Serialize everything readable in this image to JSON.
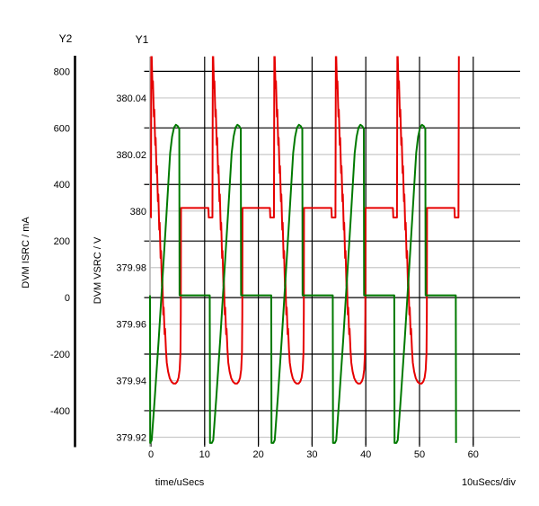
{
  "window": {
    "background": "#ffffff"
  },
  "axes": {
    "y2": {
      "header": "Y2",
      "title": "DVM ISRC / mA",
      "ticks": [
        "800",
        "600",
        "400",
        "200",
        "0",
        "-200",
        "-400"
      ],
      "tick_values": [
        800,
        600,
        400,
        200,
        0,
        -200,
        -400
      ]
    },
    "y1": {
      "header": "Y1",
      "title": "DVM VSRC / V",
      "ticks": [
        "380.04",
        "380.02",
        "380",
        "379.98",
        "379.96",
        "379.94",
        "379.92"
      ],
      "tick_values": [
        380.04,
        380.02,
        380,
        379.98,
        379.96,
        379.94,
        379.92
      ]
    },
    "x": {
      "title": "time/uSecs",
      "scale_note": "10uSecs/div",
      "ticks": [
        "0",
        "10",
        "20",
        "30",
        "40",
        "50",
        "60"
      ],
      "tick_values": [
        0,
        10,
        20,
        30,
        40,
        50,
        60
      ]
    }
  },
  "colors": {
    "red_trace": "#e60000",
    "green_trace": "#007a00",
    "grid_black": "#000000",
    "grid_gray": "#c9c9c9",
    "y1_axis_gray": "#b3b3b3",
    "text": "#000000",
    "background": "#ffffff"
  },
  "chart_data": {
    "type": "line",
    "title": "",
    "x_unit": "uSecs",
    "x_range": [
      0,
      69
    ],
    "x_grid_every": 10,
    "y2_range_mA": [
      -520,
      852
    ],
    "y1_range_V": [
      379.917,
      380.054
    ],
    "period_us": 11.45,
    "num_switching_cycles": 6,
    "series": [
      {
        "name": "DVM ISRC",
        "axis": "Y2",
        "unit": "mA",
        "color": "#e60000",
        "behavior": "Each cycle: narrow spike clipped at plot top (~850 mA), jagged steep fall to a rounded -300 mA dip, near-vertical rise to ~317 mA plateau, small sag to ~283 mA just before the next spike. Trace ends on the 6th spike.",
        "spike_peak_mA": 900,
        "spike_times_us": [
          0,
          11.45,
          22.9,
          34.35,
          45.8,
          57.25
        ],
        "descent_dt_mA": [
          [
            0.3,
            740
          ],
          [
            0.38,
            765
          ],
          [
            0.55,
            640
          ],
          [
            0.63,
            665
          ],
          [
            0.8,
            540
          ],
          [
            0.88,
            565
          ],
          [
            1.05,
            440
          ],
          [
            1.13,
            465
          ],
          [
            1.3,
            340
          ],
          [
            1.38,
            365
          ],
          [
            1.55,
            240
          ],
          [
            1.63,
            265
          ],
          [
            1.8,
            140
          ],
          [
            1.88,
            165
          ],
          [
            2.05,
            40
          ],
          [
            2.13,
            65
          ],
          [
            2.3,
            -60
          ],
          [
            2.38,
            -35
          ],
          [
            2.55,
            -130
          ],
          [
            2.63,
            -110
          ],
          [
            2.8,
            -185
          ],
          [
            2.95,
            -230
          ],
          [
            3.2,
            -262
          ],
          [
            3.5,
            -285
          ],
          [
            3.85,
            -298
          ],
          [
            4.2,
            -304
          ],
          [
            4.6,
            -304
          ],
          [
            4.9,
            -297
          ],
          [
            5.15,
            -283
          ],
          [
            5.35,
            -255
          ],
          [
            5.5,
            -195
          ],
          [
            5.56,
            -60
          ],
          [
            5.6,
            317
          ]
        ],
        "flat_mA": 317,
        "sag_mA": 283,
        "sag_lead_us": 0.75,
        "sag_edge_us": 0.07,
        "start_level_mA": 283
      },
      {
        "name": "DVM VSRC",
        "axis": "Y1",
        "unit": "V",
        "color": "#007a00",
        "behavior": "Each cycle: ramp from 379.918 V up to a rounded 380.0305 V crest, vertical drop to a 379.970 V plateau, then vertical plunge back to 379.918 V just before the next current spike. Trace ends on the 6th plunge.",
        "ramp_dt_V": [
          [
            -0.1,
            379.918
          ],
          [
            0.15,
            379.919
          ],
          [
            0.72,
            379.934
          ],
          [
            1.43,
            379.954
          ],
          [
            2.15,
            379.976
          ],
          [
            2.87,
            379.998
          ],
          [
            3.58,
            380.0205
          ],
          [
            3.94,
            380.0263
          ],
          [
            4.3,
            380.0295
          ],
          [
            4.65,
            380.0305
          ],
          [
            5.01,
            380.03
          ],
          [
            5.28,
            380.029
          ]
        ],
        "drop_dt": 5.33,
        "flat_V": 379.9702,
        "flat_end_dt": 10.95,
        "plunge_dt": 11.0,
        "plunge_V": 379.918,
        "initial_plunge_t": -0.17
      }
    ],
    "legend": "none",
    "grid": "dual-axis: black horizontal lines = Y2 (mA) divisions, light gray horizontal lines = Y1 (V) divisions, black vertical lines every 10 uSecs"
  }
}
